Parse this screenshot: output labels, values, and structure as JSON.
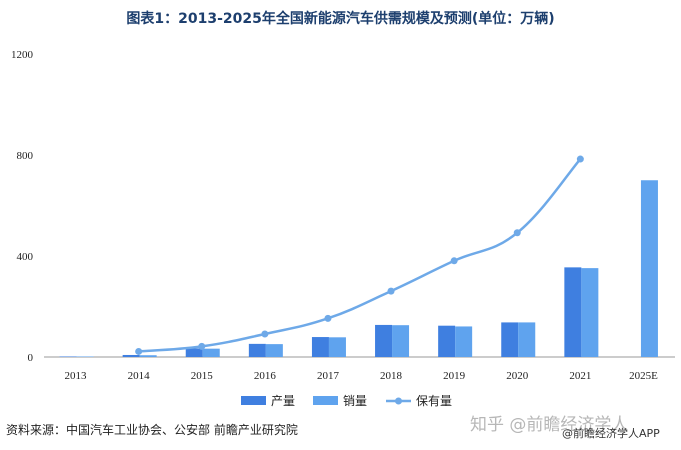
{
  "chart_data": {
    "type": "bar",
    "title": "图表1：2013-2025年全国新能源汽车供需规模及预测(单位：万辆)",
    "categories": [
      "2013",
      "2014",
      "2015",
      "2016",
      "2017",
      "2018",
      "2019",
      "2020",
      "2021",
      "2025E"
    ],
    "series": [
      {
        "name": "产量",
        "type": "bar",
        "color": "#3f7fe0",
        "values": [
          2,
          8,
          34,
          52,
          79,
          127,
          124,
          137,
          355,
          null
        ]
      },
      {
        "name": "销量",
        "type": "bar",
        "color": "#5fa3ee",
        "values": [
          2,
          7,
          33,
          51,
          78,
          126,
          121,
          137,
          352,
          700
        ]
      },
      {
        "name": "保有量",
        "type": "line",
        "color": "#6ea9e8",
        "values": [
          null,
          22,
          42,
          91,
          153,
          261,
          381,
          492,
          784,
          null
        ]
      }
    ],
    "yticks": [
      0,
      400,
      800,
      1200
    ],
    "ylim": [
      0,
      1200
    ],
    "grid": false,
    "legend_position": "bottom"
  },
  "source": "资料来源：中国汽车工业协会、公安部 前瞻产业研究院",
  "watermarks": {
    "zhihu": "知乎 @前瞻经济学人",
    "app": "@前瞻经济学人APP"
  }
}
